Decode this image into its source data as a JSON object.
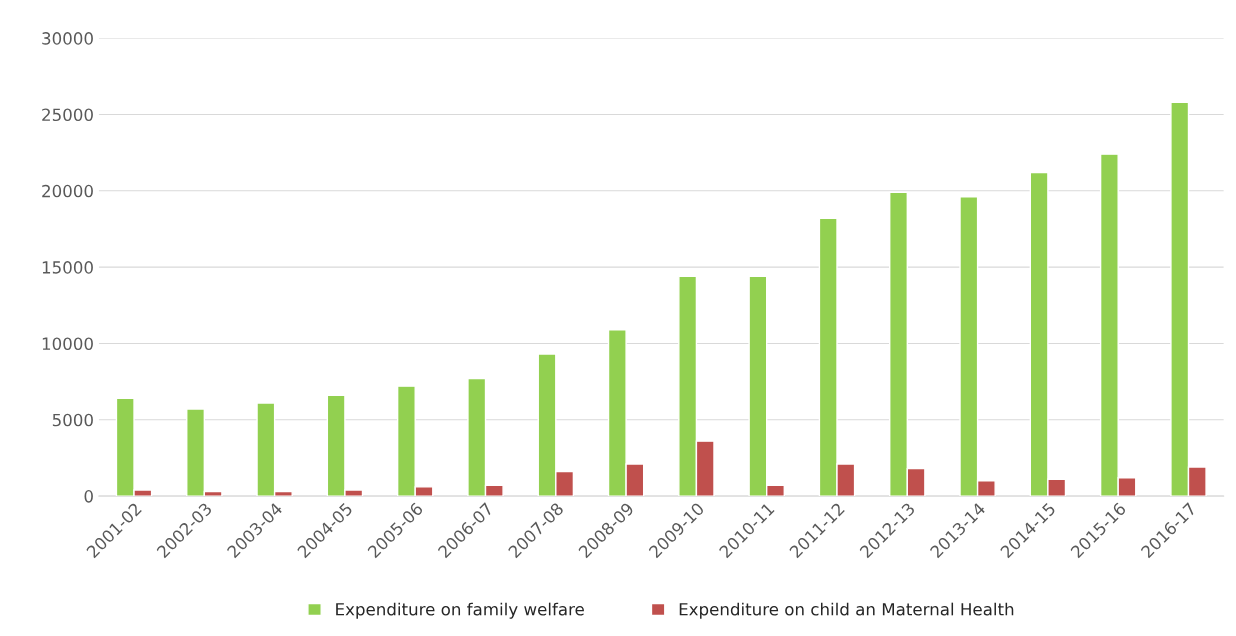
{
  "chart_data": {
    "type": "bar",
    "categories": [
      "2001-02",
      "2002-03",
      "2003-04",
      "2004-05",
      "2005-06",
      "2006-07",
      "2007-08",
      "2008-09",
      "2009-10",
      "2010-11",
      "2011-12",
      "2012-13",
      "2013-14",
      "2014-15",
      "2015-16",
      "2016-17"
    ],
    "series": [
      {
        "name": "Expenditure on family welfare",
        "color": "#92d050",
        "values": [
          6400,
          5700,
          6100,
          6600,
          7200,
          7700,
          9300,
          10900,
          14400,
          14400,
          18200,
          19900,
          19600,
          21200,
          22400,
          25800
        ]
      },
      {
        "name": "Expenditure on child an Maternal Health",
        "color": "#c0504d",
        "values": [
          400,
          300,
          300,
          400,
          600,
          700,
          1600,
          2100,
          3600,
          700,
          2100,
          1800,
          1000,
          1100,
          1200,
          1900
        ]
      }
    ],
    "ylim": [
      0,
      30000
    ],
    "yticks": [
      0,
      5000,
      10000,
      15000,
      20000,
      25000,
      30000
    ],
    "grid": "y",
    "legend": "bottom"
  }
}
